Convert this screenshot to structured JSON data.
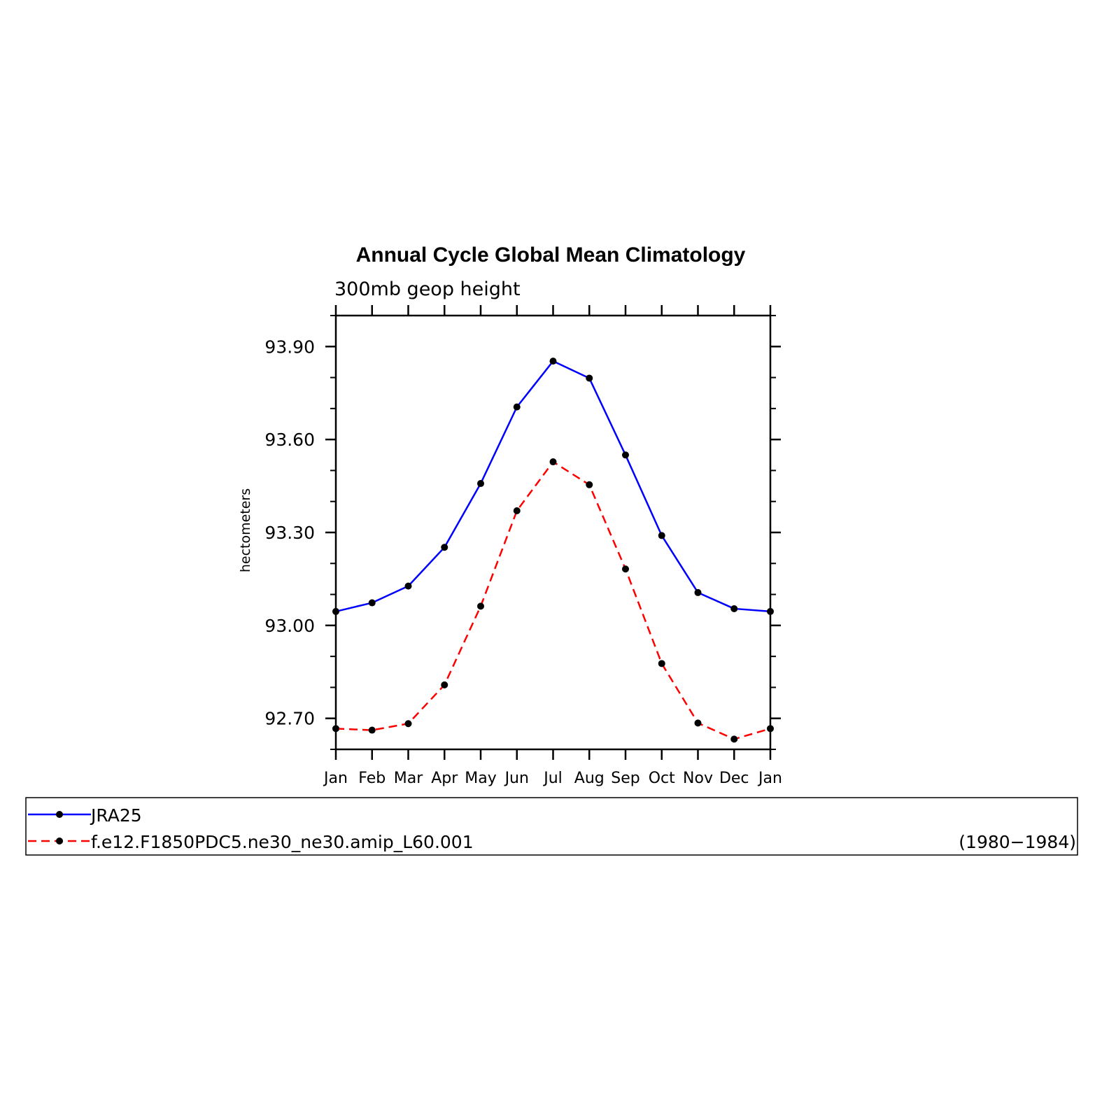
{
  "chart_data": {
    "type": "line",
    "title": "Annual Cycle Global Mean Climatology",
    "subtitle": "300mb geop height",
    "xlabel": "",
    "ylabel": "hectometers",
    "categories": [
      "Jan",
      "Feb",
      "Mar",
      "Apr",
      "May",
      "Jun",
      "Jul",
      "Aug",
      "Sep",
      "Oct",
      "Nov",
      "Dec",
      "Jan"
    ],
    "ylim": [
      92.6,
      94.0
    ],
    "yticks": [
      92.7,
      93.0,
      93.3,
      93.6,
      93.9
    ],
    "ytick_labels": [
      "92.70",
      "93.00",
      "93.30",
      "93.60",
      "93.90"
    ],
    "grid": false,
    "legend_placement": "bottom",
    "series": [
      {
        "name": "JRA25",
        "color": "#0000ff",
        "dash": "solid",
        "marker": "circle",
        "values": [
          93.045,
          93.073,
          93.127,
          93.252,
          93.458,
          93.705,
          93.853,
          93.798,
          93.55,
          93.29,
          93.106,
          93.054,
          93.045
        ]
      },
      {
        "name": "f.e12.F1850PDC5.ne30_ne30.amip_L60.001",
        "color": "#ff0000",
        "dash": "dashed",
        "marker": "circle",
        "values": [
          92.667,
          92.662,
          92.683,
          92.808,
          93.062,
          93.37,
          93.528,
          93.454,
          93.182,
          92.877,
          92.685,
          92.633,
          92.667
        ]
      }
    ],
    "legend_note": "(1980−1984)"
  }
}
